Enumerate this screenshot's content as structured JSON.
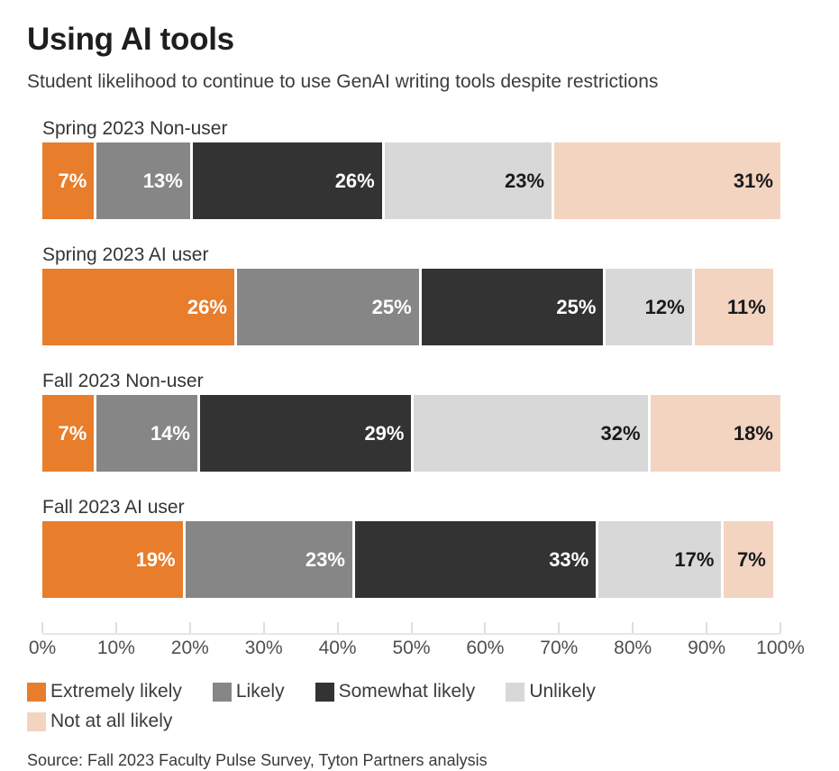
{
  "header": {
    "title": "Using AI tools",
    "subtitle": "Student likelihood to continue to use GenAI writing tools despite restrictions"
  },
  "chart_data": {
    "type": "bar",
    "variant": "horizontal-stacked",
    "categories": [
      "Spring 2023 Non-user",
      "Spring 2023 AI user",
      "Fall 2023 Non-user",
      "Fall 2023 AI user"
    ],
    "series": [
      {
        "name": "Extremely likely",
        "color": "#E87D2B",
        "label_color": "#ffffff",
        "values": [
          7,
          26,
          7,
          19
        ]
      },
      {
        "name": "Likely",
        "color": "#868686",
        "label_color": "#ffffff",
        "values": [
          13,
          25,
          14,
          23
        ]
      },
      {
        "name": "Somewhat likely",
        "color": "#333333",
        "label_color": "#ffffff",
        "values": [
          26,
          25,
          29,
          33
        ]
      },
      {
        "name": "Unlikely",
        "color": "#D8D8D8",
        "label_color": "#1a1a1a",
        "values": [
          23,
          12,
          32,
          17
        ]
      },
      {
        "name": "Not at all likely",
        "color": "#F3D4C1",
        "label_color": "#1a1a1a",
        "values": [
          31,
          11,
          18,
          7
        ]
      }
    ],
    "value_suffix": "%",
    "xlim": [
      0,
      100
    ],
    "x_ticks": [
      "0%",
      "10%",
      "20%",
      "30%",
      "40%",
      "50%",
      "60%",
      "70%",
      "80%",
      "90%",
      "100%"
    ],
    "legend_position": "bottom",
    "grid": false,
    "title": "Using AI tools",
    "subtitle": "Student likelihood to continue to use GenAI writing tools despite restrictions",
    "source": "Source: Fall 2023 Faculty Pulse Survey, Tyton Partners analysis"
  },
  "footer": {
    "source": "Source: Fall 2023 Faculty Pulse Survey, Tyton Partners analysis"
  }
}
